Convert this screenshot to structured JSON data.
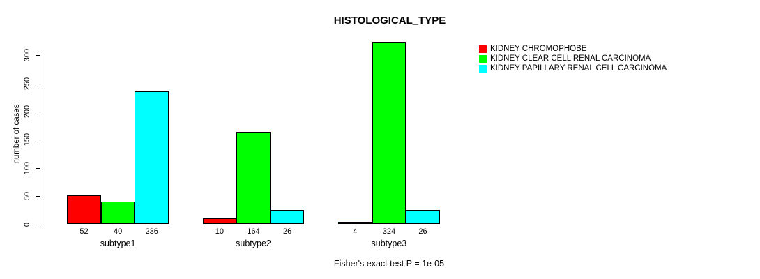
{
  "chart_data": {
    "type": "bar",
    "title": "HISTOLOGICAL_TYPE",
    "ylabel": "number of cases",
    "xlabel": "",
    "categories": [
      "subtype1",
      "subtype2",
      "subtype3"
    ],
    "series": [
      {
        "name": "KIDNEY CHROMOPHOBE",
        "color": "#ff0000",
        "values": [
          52,
          10,
          4
        ]
      },
      {
        "name": "KIDNEY CLEAR CELL RENAL CARCINOMA",
        "color": "#00ff00",
        "values": [
          40,
          164,
          324
        ]
      },
      {
        "name": "KIDNEY PAPILLARY RENAL CELL CARCINOMA",
        "color": "#00ffff",
        "values": [
          236,
          26,
          26
        ]
      }
    ],
    "bar_value_labels": [
      [
        "52",
        "40",
        "236"
      ],
      [
        "10",
        "164",
        "26"
      ],
      [
        "4",
        "324",
        "26"
      ]
    ],
    "yticks": [
      "0",
      "50",
      "100",
      "150",
      "200",
      "250",
      "300"
    ],
    "ylim": [
      0,
      300
    ],
    "grid": false,
    "legend_position": "right-outside",
    "annotation": "Fisher's exact test P = 1e-05",
    "colors": {
      "background": "#ffffff",
      "axis": "#000000",
      "text": "#000000",
      "bar_border": "#000000"
    }
  }
}
